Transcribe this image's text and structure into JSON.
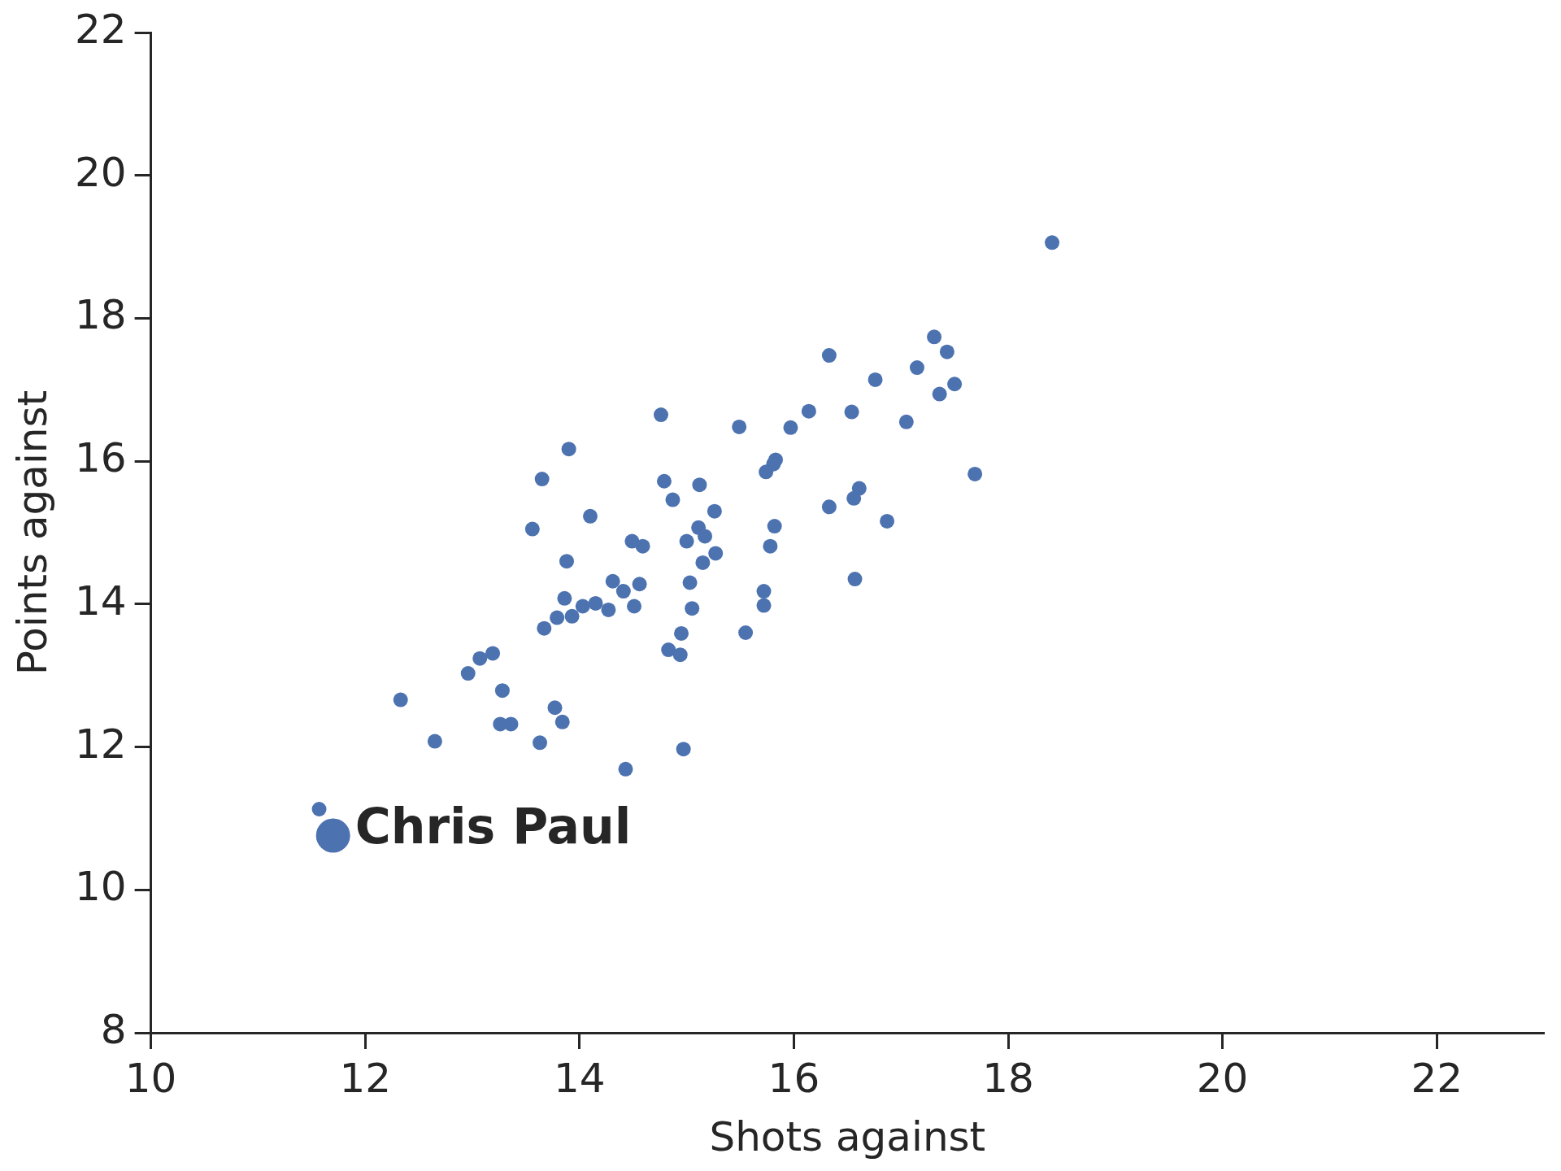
{
  "chart_data": {
    "type": "scatter",
    "xlabel": "Shots against",
    "ylabel": "Points against",
    "xlim": [
      10,
      23
    ],
    "ylim": [
      8,
      22
    ],
    "xticks": [
      10,
      12,
      14,
      16,
      18,
      20,
      22
    ],
    "yticks": [
      8,
      10,
      12,
      14,
      16,
      18,
      20,
      22
    ],
    "grid": false,
    "legend": false,
    "marker": "circle",
    "series": [
      {
        "color": "#4c72b0",
        "x": [
          18.41,
          17.31,
          17.43,
          16.33,
          17.15,
          16.76,
          17.5,
          17.36,
          16.14,
          16.54,
          14.76,
          17.05,
          15.49,
          15.97,
          13.9,
          15.83,
          15.81,
          15.74,
          17.69,
          13.65,
          14.79,
          15.12,
          16.61,
          16.56,
          14.87,
          16.33,
          15.26,
          14.1,
          16.87,
          13.56,
          15.82,
          15.11,
          15.17,
          14.49,
          15.0,
          14.59,
          15.78,
          15.27,
          13.88,
          15.15,
          16.57,
          14.31,
          15.03,
          14.56,
          14.41,
          15.72,
          13.86,
          14.15,
          14.03,
          14.51,
          15.72,
          14.27,
          15.05,
          13.79,
          13.93,
          13.67,
          15.55,
          14.95,
          14.83,
          14.94,
          13.19,
          13.07,
          12.96,
          13.28,
          12.33,
          13.77,
          13.84,
          13.26,
          13.36,
          12.65,
          13.63,
          14.97,
          14.43,
          11.57
        ],
        "values": [
          19.06,
          17.74,
          17.53,
          17.48,
          17.31,
          17.14,
          17.08,
          16.94,
          16.7,
          16.69,
          16.65,
          16.55,
          16.48,
          16.47,
          16.17,
          16.02,
          15.96,
          15.85,
          15.82,
          15.75,
          15.72,
          15.67,
          15.62,
          15.48,
          15.46,
          15.36,
          15.3,
          15.23,
          15.16,
          15.05,
          15.09,
          15.07,
          14.95,
          14.88,
          14.88,
          14.81,
          14.81,
          14.71,
          14.6,
          14.58,
          14.35,
          14.32,
          14.3,
          14.28,
          14.18,
          14.18,
          14.08,
          14.01,
          13.97,
          13.97,
          13.98,
          13.92,
          13.94,
          13.81,
          13.83,
          13.66,
          13.6,
          13.59,
          13.36,
          13.29,
          13.31,
          13.24,
          13.03,
          12.79,
          12.66,
          12.55,
          12.35,
          12.32,
          12.32,
          12.08,
          12.06,
          11.97,
          11.69,
          11.13
        ]
      },
      {
        "name": "Chris Paul",
        "color": "#4c72b0",
        "x": [
          11.7
        ],
        "values": [
          10.76
        ]
      }
    ]
  }
}
